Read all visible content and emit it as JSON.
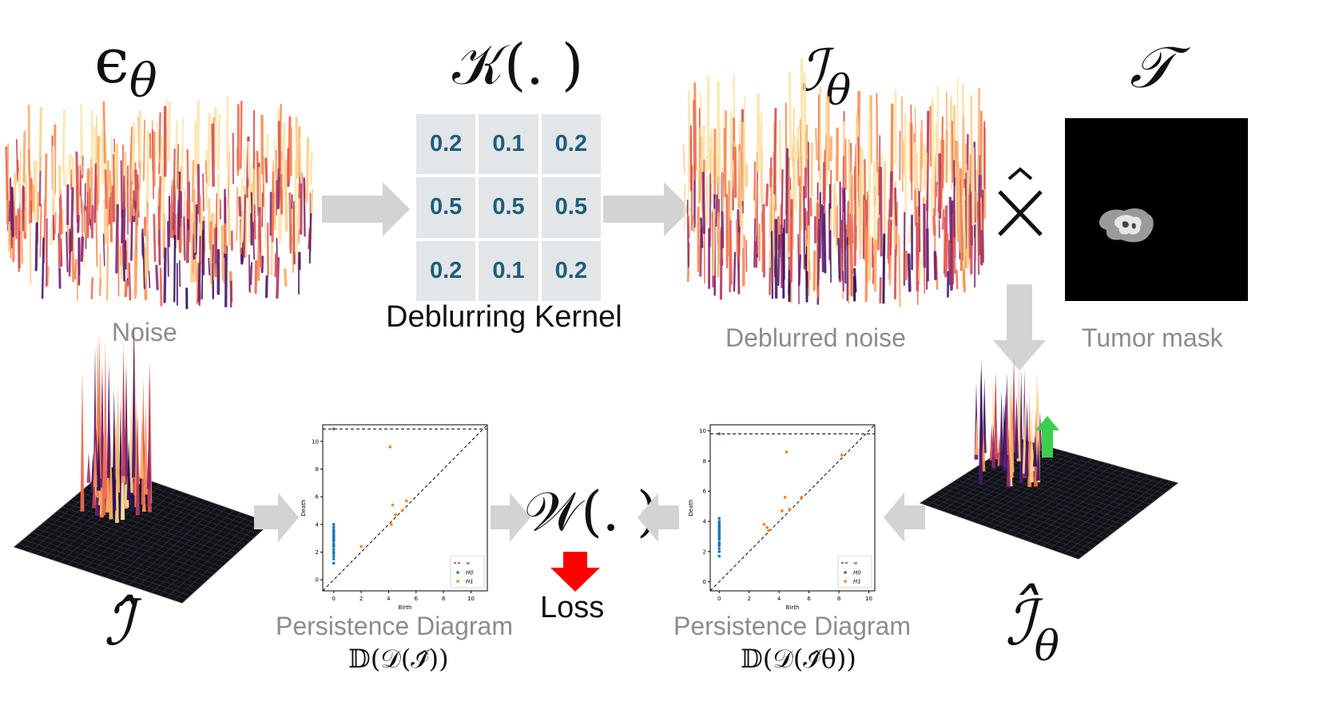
{
  "symbols": {
    "epsilon": "ϵ",
    "epsilon_sub": "θ",
    "kernel": "𝒦(. )",
    "deblurred": "ℐ",
    "deblurred_sub": "θ",
    "tumor": "𝒯",
    "multiply": "×̂",
    "i_hat": "ℐ̂",
    "i_hat_theta": "ℐ̂",
    "i_hat_theta_sub": "θ",
    "wasserstein": "𝒲(. )"
  },
  "captions": {
    "noise": "Noise",
    "kernel": "Deblurring Kernel",
    "deblurred": "Deblurred noise",
    "tumor": "Tumor mask",
    "loss": "Loss",
    "pd_left_title": "Persistence Diagram",
    "pd_left_formula": "𝔻(𝒟(ℐ̂))",
    "pd_right_title": "Persistence Diagram",
    "pd_right_formula": "𝔻(𝒟(ℐ̂θ))"
  },
  "kernel_values": [
    "0.2",
    "0.1",
    "0.2",
    "0.5",
    "0.5",
    "0.5",
    "0.2",
    "0.1",
    "0.2"
  ],
  "colors": {
    "arrow": "#d3d3d3",
    "kernel_cell": "#e2e6e9",
    "kernel_text": "#1f5c7a",
    "loss_arrow": "#ff0000",
    "up_arrow": "#3ccf4e",
    "h0": "#1f77b4",
    "h1": "#ff7f0e"
  },
  "chart_data": [
    {
      "type": "scatter",
      "title": "",
      "xlabel": "Birth",
      "ylabel": "Death",
      "xlim": [
        -0.8,
        11.2
      ],
      "ylim": [
        -0.8,
        11.2
      ],
      "xticks": [
        "0",
        "2",
        "4",
        "6",
        "8",
        "10"
      ],
      "yticks": [
        "0",
        "2",
        "4",
        "6",
        "8",
        "10"
      ],
      "infinity_level": 10.9,
      "legend": [
        "∞",
        "H0",
        "H1"
      ],
      "series": [
        {
          "name": "H0",
          "x": [
            0,
            0,
            0,
            0,
            0,
            0,
            0,
            0,
            0,
            0,
            0,
            0,
            0,
            0,
            0,
            0,
            0,
            0,
            0,
            0,
            0
          ],
          "y": [
            10.9,
            1.2,
            1.5,
            1.7,
            1.9,
            2.0,
            2.2,
            2.4,
            2.5,
            2.6,
            2.8,
            2.9,
            3.0,
            3.1,
            3.2,
            3.3,
            3.4,
            3.5,
            3.6,
            3.8,
            4.0
          ]
        },
        {
          "name": "H1",
          "x": [
            2.0,
            4.1,
            4.3,
            4.5,
            5.0,
            5.3,
            4.2
          ],
          "y": [
            2.4,
            9.6,
            5.4,
            4.7,
            5.0,
            5.7,
            4.0
          ]
        }
      ]
    },
    {
      "type": "scatter",
      "title": "",
      "xlabel": "Birth",
      "ylabel": "Death",
      "xlim": [
        -0.6,
        10.4
      ],
      "ylim": [
        -0.6,
        10.4
      ],
      "xticks": [
        "0",
        "2",
        "4",
        "6",
        "8",
        "10"
      ],
      "yticks": [
        "0",
        "2",
        "4",
        "6",
        "8",
        "10"
      ],
      "infinity_level": 9.8,
      "legend": [
        "∞",
        "H0",
        "H1"
      ],
      "series": [
        {
          "name": "H0",
          "x": [
            0,
            0,
            0,
            0,
            0,
            0,
            0,
            0,
            0,
            0,
            0,
            0,
            0,
            0,
            0,
            0,
            0,
            0,
            0,
            0,
            0
          ],
          "y": [
            9.8,
            1.7,
            2.0,
            2.2,
            2.4,
            2.5,
            2.6,
            2.8,
            2.9,
            3.0,
            3.1,
            3.2,
            3.3,
            3.4,
            3.5,
            3.6,
            3.7,
            3.8,
            3.9,
            4.0,
            4.2
          ]
        },
        {
          "name": "H1",
          "x": [
            3.0,
            3.2,
            3.3,
            4.2,
            4.4,
            4.5,
            4.7,
            5.5,
            8.2
          ],
          "y": [
            3.8,
            3.6,
            3.4,
            4.7,
            5.6,
            8.6,
            4.8,
            5.6,
            8.4
          ]
        }
      ]
    }
  ]
}
